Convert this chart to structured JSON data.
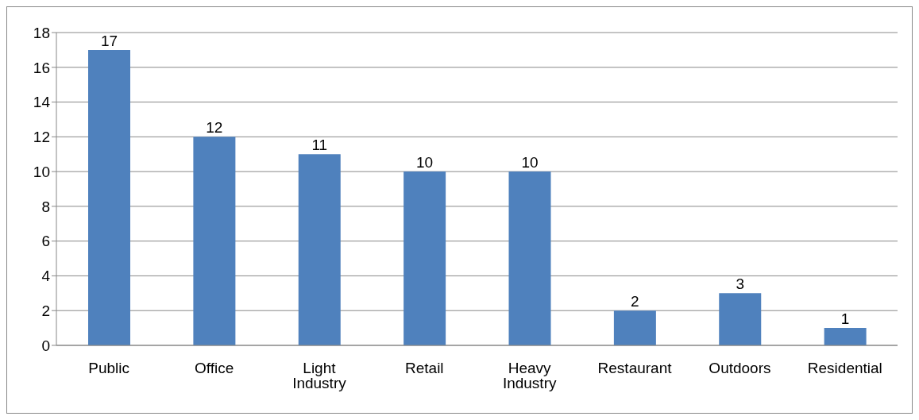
{
  "chart_data": {
    "type": "bar",
    "categories": [
      "Public",
      "Office",
      "Light Industry",
      "Retail",
      "Heavy Industry",
      "Restaurant",
      "Outdoors",
      "Residential"
    ],
    "values": [
      17,
      12,
      11,
      10,
      10,
      2,
      3,
      1
    ],
    "color": "#4f81bd",
    "ylim": [
      0,
      18
    ],
    "yticks": [
      0,
      2,
      4,
      6,
      8,
      10,
      12,
      14,
      16,
      18
    ],
    "grid": "y",
    "data_labels": true,
    "legend": false
  }
}
